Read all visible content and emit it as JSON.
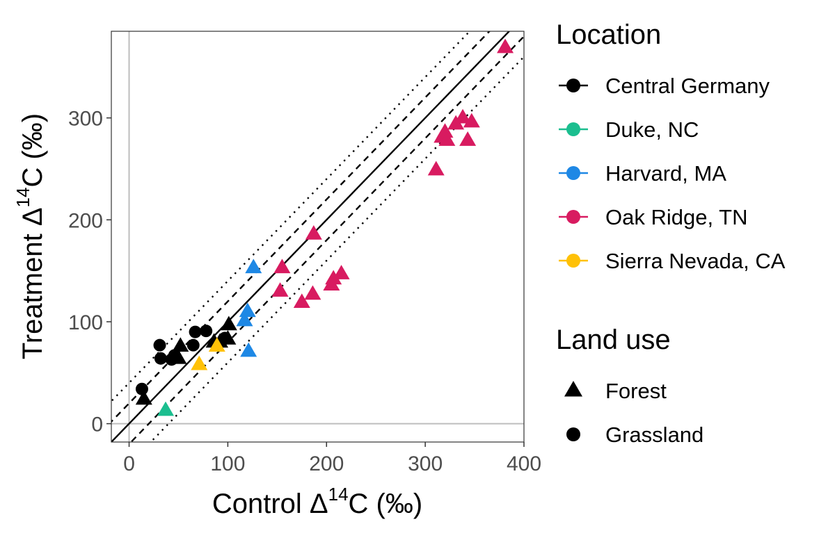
{
  "chart_data": {
    "type": "scatter",
    "xlabel": {
      "prefix": "Control ",
      "delta": "Δ",
      "sup": "14",
      "suffix": "C (‰)"
    },
    "ylabel": {
      "prefix": "Treatment ",
      "delta": "Δ",
      "sup": "14",
      "suffix": "C (‰)"
    },
    "xlim": [
      -18,
      400
    ],
    "ylim": [
      -18,
      385
    ],
    "xticks": [
      0,
      100,
      200,
      300,
      400
    ],
    "yticks": [
      0,
      100,
      200,
      300
    ],
    "reference_lines": {
      "identity": {
        "slope": 1,
        "intercept": 0,
        "style": "solid"
      },
      "dashed_offsets": [
        -20,
        20
      ],
      "dotted_offsets": [
        -40,
        40
      ]
    },
    "zero_lines": {
      "x": 0,
      "y": 0
    },
    "legend_location": {
      "title": "Location",
      "entries": [
        {
          "label": "Central Germany",
          "color": "#000000"
        },
        {
          "label": "Duke, NC",
          "color": "#1bbe8f"
        },
        {
          "label": "Harvard, MA",
          "color": "#1e88e5"
        },
        {
          "label": "Oak Ridge, TN",
          "color": "#d81b60"
        },
        {
          "label": "Sierra Nevada, CA",
          "color": "#ffc107"
        }
      ]
    },
    "legend_landuse": {
      "title": "Land use",
      "entries": [
        {
          "label": "Forest",
          "shape": "triangle"
        },
        {
          "label": "Grassland",
          "shape": "circle"
        }
      ]
    },
    "points": [
      {
        "x": 13,
        "y": 34,
        "location": "Central Germany",
        "landuse": "Grassland"
      },
      {
        "x": 15,
        "y": 24,
        "location": "Central Germany",
        "landuse": "Forest"
      },
      {
        "x": 31,
        "y": 77,
        "location": "Central Germany",
        "landuse": "Grassland"
      },
      {
        "x": 32,
        "y": 64,
        "location": "Central Germany",
        "landuse": "Grassland"
      },
      {
        "x": 43,
        "y": 63,
        "location": "Central Germany",
        "landuse": "Grassland"
      },
      {
        "x": 46,
        "y": 67,
        "location": "Central Germany",
        "landuse": "Grassland"
      },
      {
        "x": 50,
        "y": 64,
        "location": "Central Germany",
        "landuse": "Forest"
      },
      {
        "x": 52,
        "y": 76,
        "location": "Central Germany",
        "landuse": "Forest"
      },
      {
        "x": 65,
        "y": 77,
        "location": "Central Germany",
        "landuse": "Grassland"
      },
      {
        "x": 67,
        "y": 90,
        "location": "Central Germany",
        "landuse": "Grassland"
      },
      {
        "x": 78,
        "y": 91,
        "location": "Central Germany",
        "landuse": "Grassland"
      },
      {
        "x": 86,
        "y": 80,
        "location": "Central Germany",
        "landuse": "Forest"
      },
      {
        "x": 92,
        "y": 80,
        "location": "Central Germany",
        "landuse": "Forest"
      },
      {
        "x": 97,
        "y": 84,
        "location": "Central Germany",
        "landuse": "Grassland"
      },
      {
        "x": 100,
        "y": 83,
        "location": "Central Germany",
        "landuse": "Forest"
      },
      {
        "x": 101,
        "y": 97,
        "location": "Central Germany",
        "landuse": "Forest"
      },
      {
        "x": 37,
        "y": 13,
        "location": "Duke, NC",
        "landuse": "Forest"
      },
      {
        "x": 71,
        "y": 58,
        "location": "Sierra Nevada, CA",
        "landuse": "Forest"
      },
      {
        "x": 89,
        "y": 76,
        "location": "Sierra Nevada, CA",
        "landuse": "Forest"
      },
      {
        "x": 117,
        "y": 101,
        "location": "Harvard, MA",
        "landuse": "Forest"
      },
      {
        "x": 120,
        "y": 110,
        "location": "Harvard, MA",
        "landuse": "Forest"
      },
      {
        "x": 121,
        "y": 71,
        "location": "Harvard, MA",
        "landuse": "Forest"
      },
      {
        "x": 126,
        "y": 153,
        "location": "Harvard, MA",
        "landuse": "Forest"
      },
      {
        "x": 153,
        "y": 130,
        "location": "Oak Ridge, TN",
        "landuse": "Forest"
      },
      {
        "x": 155,
        "y": 153,
        "location": "Oak Ridge, TN",
        "landuse": "Forest"
      },
      {
        "x": 175,
        "y": 119,
        "location": "Oak Ridge, TN",
        "landuse": "Forest"
      },
      {
        "x": 186,
        "y": 127,
        "location": "Oak Ridge, TN",
        "landuse": "Forest"
      },
      {
        "x": 187,
        "y": 186,
        "location": "Oak Ridge, TN",
        "landuse": "Forest"
      },
      {
        "x": 205,
        "y": 136,
        "location": "Oak Ridge, TN",
        "landuse": "Forest"
      },
      {
        "x": 207,
        "y": 142,
        "location": "Oak Ridge, TN",
        "landuse": "Forest"
      },
      {
        "x": 215,
        "y": 147,
        "location": "Oak Ridge, TN",
        "landuse": "Forest"
      },
      {
        "x": 311,
        "y": 249,
        "location": "Oak Ridge, TN",
        "landuse": "Forest"
      },
      {
        "x": 317,
        "y": 281,
        "location": "Oak Ridge, TN",
        "landuse": "Forest"
      },
      {
        "x": 320,
        "y": 286,
        "location": "Oak Ridge, TN",
        "landuse": "Forest"
      },
      {
        "x": 322,
        "y": 278,
        "location": "Oak Ridge, TN",
        "landuse": "Forest"
      },
      {
        "x": 331,
        "y": 294,
        "location": "Oak Ridge, TN",
        "landuse": "Forest"
      },
      {
        "x": 338,
        "y": 300,
        "location": "Oak Ridge, TN",
        "landuse": "Forest"
      },
      {
        "x": 343,
        "y": 278,
        "location": "Oak Ridge, TN",
        "landuse": "Forest"
      },
      {
        "x": 347,
        "y": 296,
        "location": "Oak Ridge, TN",
        "landuse": "Forest"
      },
      {
        "x": 381,
        "y": 369,
        "location": "Oak Ridge, TN",
        "landuse": "Forest"
      }
    ]
  }
}
